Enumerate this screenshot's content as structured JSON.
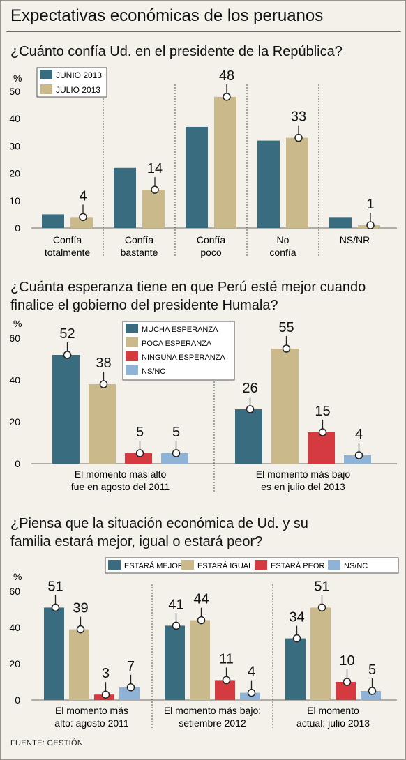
{
  "header": {
    "title": "Expectativas económicas de los peruanos"
  },
  "source": "FUENTE: GESTIÓN",
  "colors": {
    "teal": "#3a6c80",
    "tan": "#c9b98b",
    "red": "#d43a3f",
    "lightblue": "#8fb3d6",
    "background": "#f3f1ea"
  },
  "chart_data": [
    {
      "type": "bar",
      "title": "¿Cuánto confía Ud. en el presidente de la República?",
      "ylabel": "%",
      "ylim": [
        0,
        50
      ],
      "yticks": [
        "0",
        "10",
        "20",
        "30",
        "40",
        "50"
      ],
      "legend_position": "top-left",
      "categories": [
        [
          "Confía",
          "totalmente"
        ],
        [
          "Confía",
          "bastante"
        ],
        [
          "Confía",
          "poco"
        ],
        [
          "No",
          "confía"
        ],
        [
          "NS/NR"
        ]
      ],
      "series": [
        {
          "name": "JUNIO 2013",
          "color": "#3a6c80",
          "values": [
            5,
            22,
            37,
            32,
            4
          ],
          "labeled": false
        },
        {
          "name": "JULIO 2013",
          "color": "#c9b98b",
          "values": [
            4,
            14,
            48,
            33,
            1
          ],
          "labeled": true
        }
      ]
    },
    {
      "type": "bar",
      "title": "¿Cuánta esperanza tiene en que Perú esté mejor cuando finalice el gobierno del presidente Humala?",
      "ylabel": "%",
      "ylim": [
        0,
        60
      ],
      "yticks": [
        "0",
        "20",
        "40",
        "60"
      ],
      "legend_position": "top-center",
      "categories": [
        [
          "El momento más alto",
          "fue en agosto del 2011"
        ],
        [
          "El momento más bajo",
          "es en julio del 2013"
        ]
      ],
      "series": [
        {
          "name": "MUCHA ESPERANZA",
          "color": "#3a6c80",
          "values": [
            52,
            26
          ],
          "labeled": true
        },
        {
          "name": "POCA ESPERANZA",
          "color": "#c9b98b",
          "values": [
            38,
            55
          ],
          "labeled": true
        },
        {
          "name": "NINGUNA ESPERANZA",
          "color": "#d43a3f",
          "values": [
            5,
            15
          ],
          "labeled": true
        },
        {
          "name": "NS/NC",
          "color": "#8fb3d6",
          "values": [
            5,
            4
          ],
          "labeled": true
        }
      ]
    },
    {
      "type": "bar",
      "title": "¿Piensa que la situación económica de Ud. y su familia estará mejor, igual o estará peor?",
      "ylabel": "%",
      "ylim": [
        0,
        60
      ],
      "yticks": [
        "0",
        "20",
        "40",
        "60"
      ],
      "legend_position": "top",
      "categories": [
        [
          "El momento más",
          "alto: agosto 2011"
        ],
        [
          "El momento más bajo:",
          "setiembre 2012"
        ],
        [
          "El momento",
          "actual: julio 2013"
        ]
      ],
      "series": [
        {
          "name": "ESTARÁ MEJOR",
          "color": "#3a6c80",
          "values": [
            51,
            41,
            34
          ],
          "labeled": true
        },
        {
          "name": "ESTARÁ IGUAL",
          "color": "#c9b98b",
          "values": [
            39,
            44,
            51
          ],
          "labeled": true
        },
        {
          "name": "ESTARÁ PEOR",
          "color": "#d43a3f",
          "values": [
            3,
            11,
            10
          ],
          "labeled": true
        },
        {
          "name": "NS/NC",
          "color": "#8fb3d6",
          "values": [
            7,
            4,
            5
          ],
          "labeled": true
        }
      ]
    }
  ]
}
